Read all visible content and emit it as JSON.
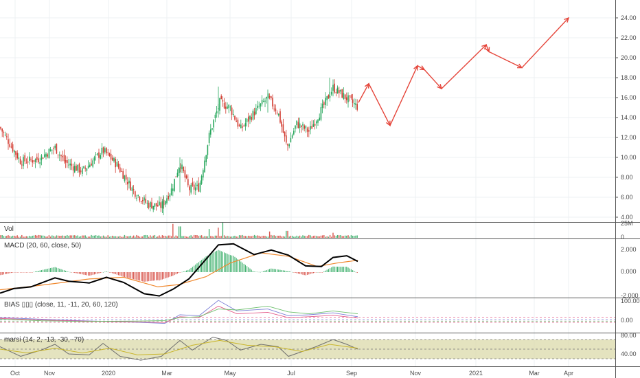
{
  "colors": {
    "up": "#26a65b",
    "down": "#d23a2f",
    "forecast": "#e5453a",
    "ma": "#f0892f",
    "macd": "#000000",
    "grid": "#eef0f3",
    "separator": "#555555",
    "marsi_band": "#d8d7a4"
  },
  "x_axis": {
    "ticks": [
      {
        "label": "Oct",
        "x": 22
      },
      {
        "label": "Nov",
        "x": 72
      },
      {
        "label": "2020",
        "x": 158
      },
      {
        "label": "Mar",
        "x": 243
      },
      {
        "label": "May",
        "x": 335
      },
      {
        "label": "Jul",
        "x": 424
      },
      {
        "label": "Sep",
        "x": 512
      },
      {
        "label": "Nov",
        "x": 605
      },
      {
        "label": "2021",
        "x": 693
      },
      {
        "label": "Mar",
        "x": 778
      },
      {
        "label": "Apr",
        "x": 828
      }
    ]
  },
  "panels": {
    "vol": {
      "label": "Vol",
      "ticks": [
        "25M",
        "0"
      ]
    },
    "macd": {
      "label": "MACD (20, 60, close, 50)",
      "ticks": [
        "2.000",
        "0.000",
        "-2.000"
      ]
    },
    "bias": {
      "label": "BIAS ▯▯▯ (close, 11, -11, 20, 60, 120)",
      "ticks": [
        "100.00",
        "0.00"
      ]
    },
    "marsi": {
      "label": "marsi (14, 2, -13, -30, -70)",
      "ticks": [
        "80.00",
        "40.00"
      ]
    }
  },
  "chart_data": [
    {
      "type": "candlestick",
      "name": "price",
      "y_ticks": [
        "24.00",
        "22.00",
        "20.00",
        "18.00",
        "16.00",
        "14.00",
        "12.00",
        "10.00",
        "8.00",
        "6.00",
        "4.00"
      ],
      "ylim": [
        4,
        25
      ],
      "anchors": [
        {
          "x": 0,
          "y": 13.0
        },
        {
          "x": 30,
          "y": 9.6
        },
        {
          "x": 55,
          "y": 9.8
        },
        {
          "x": 80,
          "y": 11.0
        },
        {
          "x": 95,
          "y": 9.5
        },
        {
          "x": 120,
          "y": 8.6
        },
        {
          "x": 150,
          "y": 10.7
        },
        {
          "x": 170,
          "y": 9.3
        },
        {
          "x": 195,
          "y": 6.6
        },
        {
          "x": 215,
          "y": 5.3
        },
        {
          "x": 235,
          "y": 5.1
        },
        {
          "x": 250,
          "y": 6.8
        },
        {
          "x": 262,
          "y": 9.5
        },
        {
          "x": 275,
          "y": 6.8
        },
        {
          "x": 290,
          "y": 7.0
        },
        {
          "x": 305,
          "y": 12.3
        },
        {
          "x": 320,
          "y": 15.5
        },
        {
          "x": 335,
          "y": 15.0
        },
        {
          "x": 350,
          "y": 12.8
        },
        {
          "x": 370,
          "y": 14.5
        },
        {
          "x": 390,
          "y": 16.0
        },
        {
          "x": 405,
          "y": 14.5
        },
        {
          "x": 418,
          "y": 11.0
        },
        {
          "x": 432,
          "y": 13.4
        },
        {
          "x": 450,
          "y": 12.6
        },
        {
          "x": 470,
          "y": 15.0
        },
        {
          "x": 485,
          "y": 17.0
        },
        {
          "x": 500,
          "y": 16.2
        },
        {
          "x": 520,
          "y": 15.1
        }
      ],
      "forecast_path": [
        {
          "x": 522,
          "y": 15.5
        },
        {
          "x": 537,
          "y": 17.4
        },
        {
          "x": 568,
          "y": 13.2
        },
        {
          "x": 608,
          "y": 19.2
        },
        {
          "x": 618,
          "y": 18.8
        },
        {
          "x": 643,
          "y": 16.9
        },
        {
          "x": 708,
          "y": 21.3
        },
        {
          "x": 712,
          "y": 20.6
        },
        {
          "x": 760,
          "y": 19.0
        },
        {
          "x": 828,
          "y": 24.0
        }
      ]
    },
    {
      "type": "bar",
      "name": "volume",
      "ylim": [
        0,
        25
      ],
      "spikes": [
        {
          "x": 252,
          "v": 22
        },
        {
          "x": 262,
          "v": 18
        },
        {
          "x": 305,
          "v": 14
        },
        {
          "x": 318,
          "v": 16
        },
        {
          "x": 325,
          "v": 24
        },
        {
          "x": 392,
          "v": 10
        },
        {
          "x": 418,
          "v": 11
        },
        {
          "x": 485,
          "v": 8
        }
      ]
    },
    {
      "type": "line",
      "name": "macd",
      "ylim": [
        -2.3,
        2.6
      ],
      "macd_line": [
        {
          "x": 0,
          "y": -1.85
        },
        {
          "x": 20,
          "y": -1.45
        },
        {
          "x": 45,
          "y": -1.3
        },
        {
          "x": 80,
          "y": -0.5
        },
        {
          "x": 100,
          "y": -0.8
        },
        {
          "x": 130,
          "y": -0.95
        },
        {
          "x": 155,
          "y": -0.45
        },
        {
          "x": 180,
          "y": -0.9
        },
        {
          "x": 210,
          "y": -1.9
        },
        {
          "x": 232,
          "y": -2.1
        },
        {
          "x": 252,
          "y": -1.5
        },
        {
          "x": 275,
          "y": -0.6
        },
        {
          "x": 298,
          "y": 1.0
        },
        {
          "x": 318,
          "y": 2.4
        },
        {
          "x": 340,
          "y": 2.5
        },
        {
          "x": 370,
          "y": 1.55
        },
        {
          "x": 395,
          "y": 1.95
        },
        {
          "x": 420,
          "y": 1.5
        },
        {
          "x": 445,
          "y": 0.55
        },
        {
          "x": 468,
          "y": 0.5
        },
        {
          "x": 485,
          "y": 1.3
        },
        {
          "x": 505,
          "y": 1.45
        },
        {
          "x": 521,
          "y": 0.95
        }
      ],
      "signal_line": [
        {
          "x": 0,
          "y": -1.55
        },
        {
          "x": 40,
          "y": -1.3
        },
        {
          "x": 80,
          "y": -1.0
        },
        {
          "x": 130,
          "y": -0.6
        },
        {
          "x": 180,
          "y": -0.45
        },
        {
          "x": 230,
          "y": -1.3
        },
        {
          "x": 260,
          "y": -1.1
        },
        {
          "x": 300,
          "y": -0.4
        },
        {
          "x": 335,
          "y": 0.8
        },
        {
          "x": 380,
          "y": 1.7
        },
        {
          "x": 420,
          "y": 1.4
        },
        {
          "x": 462,
          "y": 0.5
        },
        {
          "x": 490,
          "y": 0.8
        },
        {
          "x": 521,
          "y": 1.05
        }
      ]
    },
    {
      "type": "line",
      "name": "bias",
      "ylim": [
        -30,
        110
      ],
      "series": [
        {
          "color": "#7b7fd6",
          "points": [
            {
              "x": 0,
              "y": 10
            },
            {
              "x": 60,
              "y": 2
            },
            {
              "x": 120,
              "y": -6
            },
            {
              "x": 200,
              "y": -14
            },
            {
              "x": 240,
              "y": -20
            },
            {
              "x": 262,
              "y": 25
            },
            {
              "x": 290,
              "y": 20
            },
            {
              "x": 318,
              "y": 100
            },
            {
              "x": 345,
              "y": 45
            },
            {
              "x": 390,
              "y": 55
            },
            {
              "x": 420,
              "y": 20
            },
            {
              "x": 450,
              "y": 25
            },
            {
              "x": 485,
              "y": 35
            },
            {
              "x": 521,
              "y": 15
            }
          ]
        },
        {
          "color": "#e45b8a",
          "points": [
            {
              "x": 0,
              "y": 6
            },
            {
              "x": 60,
              "y": -2
            },
            {
              "x": 120,
              "y": -8
            },
            {
              "x": 200,
              "y": -12
            },
            {
              "x": 240,
              "y": -15
            },
            {
              "x": 262,
              "y": 15
            },
            {
              "x": 290,
              "y": 10
            },
            {
              "x": 318,
              "y": 70
            },
            {
              "x": 345,
              "y": 30
            },
            {
              "x": 390,
              "y": 38
            },
            {
              "x": 420,
              "y": 10
            },
            {
              "x": 450,
              "y": 15
            },
            {
              "x": 485,
              "y": 22
            },
            {
              "x": 521,
              "y": 8
            }
          ]
        },
        {
          "color": "#6bbf6b",
          "points": [
            {
              "x": 0,
              "y": 3
            },
            {
              "x": 60,
              "y": -6
            },
            {
              "x": 120,
              "y": -10
            },
            {
              "x": 200,
              "y": -8
            },
            {
              "x": 240,
              "y": -5
            },
            {
              "x": 262,
              "y": 10
            },
            {
              "x": 290,
              "y": 15
            },
            {
              "x": 318,
              "y": 55
            },
            {
              "x": 345,
              "y": 50
            },
            {
              "x": 390,
              "y": 70
            },
            {
              "x": 420,
              "y": 40
            },
            {
              "x": 450,
              "y": 30
            },
            {
              "x": 485,
              "y": 45
            },
            {
              "x": 521,
              "y": 30
            }
          ]
        }
      ]
    },
    {
      "type": "line",
      "name": "marsi",
      "ylim": [
        20,
        90
      ],
      "band": [
        30,
        70
      ],
      "series": [
        {
          "color": "#6d6d6d",
          "points": [
            {
              "x": 0,
              "y": 55
            },
            {
              "x": 30,
              "y": 35
            },
            {
              "x": 60,
              "y": 48
            },
            {
              "x": 80,
              "y": 60
            },
            {
              "x": 100,
              "y": 40
            },
            {
              "x": 130,
              "y": 38
            },
            {
              "x": 150,
              "y": 62
            },
            {
              "x": 175,
              "y": 35
            },
            {
              "x": 205,
              "y": 27
            },
            {
              "x": 235,
              "y": 35
            },
            {
              "x": 262,
              "y": 68
            },
            {
              "x": 280,
              "y": 48
            },
            {
              "x": 310,
              "y": 75
            },
            {
              "x": 330,
              "y": 68
            },
            {
              "x": 350,
              "y": 48
            },
            {
              "x": 380,
              "y": 60
            },
            {
              "x": 405,
              "y": 55
            },
            {
              "x": 420,
              "y": 35
            },
            {
              "x": 440,
              "y": 45
            },
            {
              "x": 460,
              "y": 55
            },
            {
              "x": 485,
              "y": 70
            },
            {
              "x": 505,
              "y": 60
            },
            {
              "x": 521,
              "y": 50
            }
          ]
        },
        {
          "color": "#c9b52a",
          "points": [
            {
              "x": 0,
              "y": 50
            },
            {
              "x": 40,
              "y": 42
            },
            {
              "x": 80,
              "y": 52
            },
            {
              "x": 120,
              "y": 42
            },
            {
              "x": 160,
              "y": 52
            },
            {
              "x": 200,
              "y": 38
            },
            {
              "x": 240,
              "y": 40
            },
            {
              "x": 280,
              "y": 58
            },
            {
              "x": 320,
              "y": 68
            },
            {
              "x": 360,
              "y": 58
            },
            {
              "x": 400,
              "y": 55
            },
            {
              "x": 440,
              "y": 45
            },
            {
              "x": 480,
              "y": 60
            },
            {
              "x": 521,
              "y": 52
            }
          ]
        }
      ]
    }
  ]
}
